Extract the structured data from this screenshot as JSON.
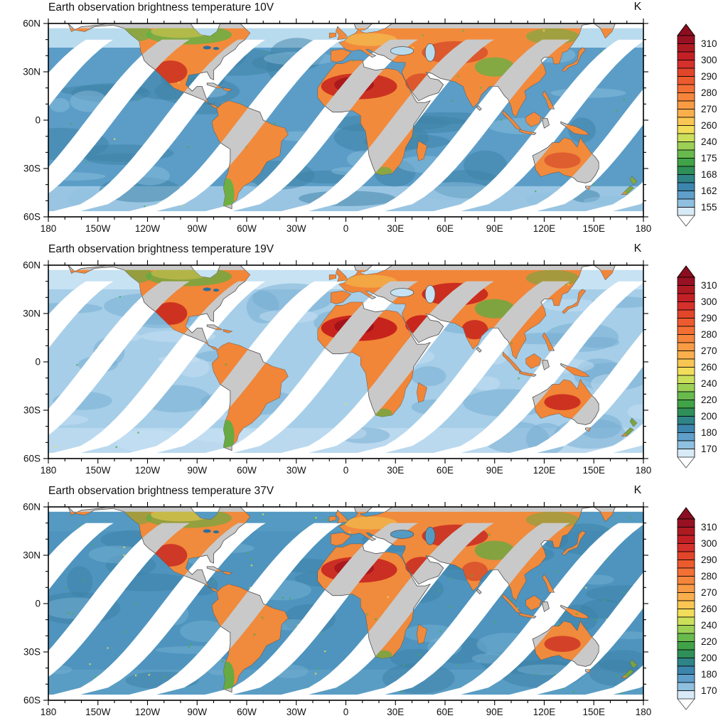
{
  "figure": {
    "x_axis_labels": [
      "180",
      "150W",
      "120W",
      "90W",
      "60W",
      "30W",
      "0",
      "30E",
      "60E",
      "90E",
      "120E",
      "150E",
      "180"
    ],
    "y_axis_labels": [
      "60N",
      "30N",
      "0",
      "30S",
      "60S"
    ],
    "land_nodata_color": "#c9c9c9",
    "coastline_color": "#4d4d4d",
    "colorbar_segment_colors": [
      "#971123",
      "#ae1a22",
      "#c32026",
      "#d5302b",
      "#e1452a",
      "#ec5b2e",
      "#f37035",
      "#f6853c",
      "#f99b44",
      "#fbaf4c",
      "#f9c653",
      "#f2dd5b",
      "#ccdf5b",
      "#9cd055",
      "#68ba4d",
      "#41a347",
      "#2f8f58",
      "#2f8487",
      "#3c86ae",
      "#5f9fc9",
      "#8fc0df",
      "#d8eaf6"
    ],
    "colorbar_top_arrow_color": "#8c0d1f",
    "colorbar_bottom_arrow_color": "#ffffff",
    "panels": [
      {
        "id": "10V",
        "title": "Earth observation brightness temperature 10V",
        "unit_label": "K",
        "colorbar_labels": [
          "310",
          "300",
          "290",
          "280",
          "270",
          "260",
          "240",
          "175",
          "168",
          "162",
          "155"
        ],
        "map_colors": {
          "ocean_base": "#5b9dc7",
          "ocean_dark": "#3d81a5",
          "ocean_light": "#8fc2df",
          "ocean_top_band": "#b9dbee",
          "ocean_bottom": "#a9d0e8",
          "land_base": "#f28a3c",
          "land_red": "#c8281e",
          "land_deep_red": "#a3131b",
          "land_green": "#5fb244",
          "land_yellow": "#f4cf55"
        }
      },
      {
        "id": "19V",
        "title": "Earth observation brightness temperature 19V",
        "unit_label": "K",
        "colorbar_labels": [
          "310",
          "300",
          "290",
          "280",
          "270",
          "260",
          "240",
          "220",
          "200",
          "180",
          "170"
        ],
        "map_colors": {
          "ocean_base": "#a6cee8",
          "ocean_dark": "#74acd2",
          "ocean_light": "#c9e3f4",
          "ocean_top_band": "#c6e2f3",
          "ocean_bottom": "#bfdcf0",
          "land_base": "#f18538",
          "land_red": "#c41d1b",
          "land_deep_red": "#9e0f1a",
          "land_green": "#58ae42",
          "land_yellow": "#f4cf55"
        }
      },
      {
        "id": "37V",
        "title": "Earth observation brightness temperature 37V",
        "unit_label": "K",
        "colorbar_labels": [
          "310",
          "300",
          "290",
          "280",
          "270",
          "260",
          "240",
          "220",
          "200",
          "180",
          "170"
        ],
        "map_colors": {
          "ocean_base": "#4e94be",
          "ocean_dark": "#3b80a6",
          "ocean_light": "#79b3d4",
          "ocean_top_band": "#559ac2",
          "ocean_bottom": "#5e9fc6",
          "land_base": "#f08a3c",
          "land_red": "#c62320",
          "land_deep_red": "#a3131b",
          "land_green": "#56ad41",
          "land_yellow": "#f2d052"
        }
      }
    ]
  }
}
